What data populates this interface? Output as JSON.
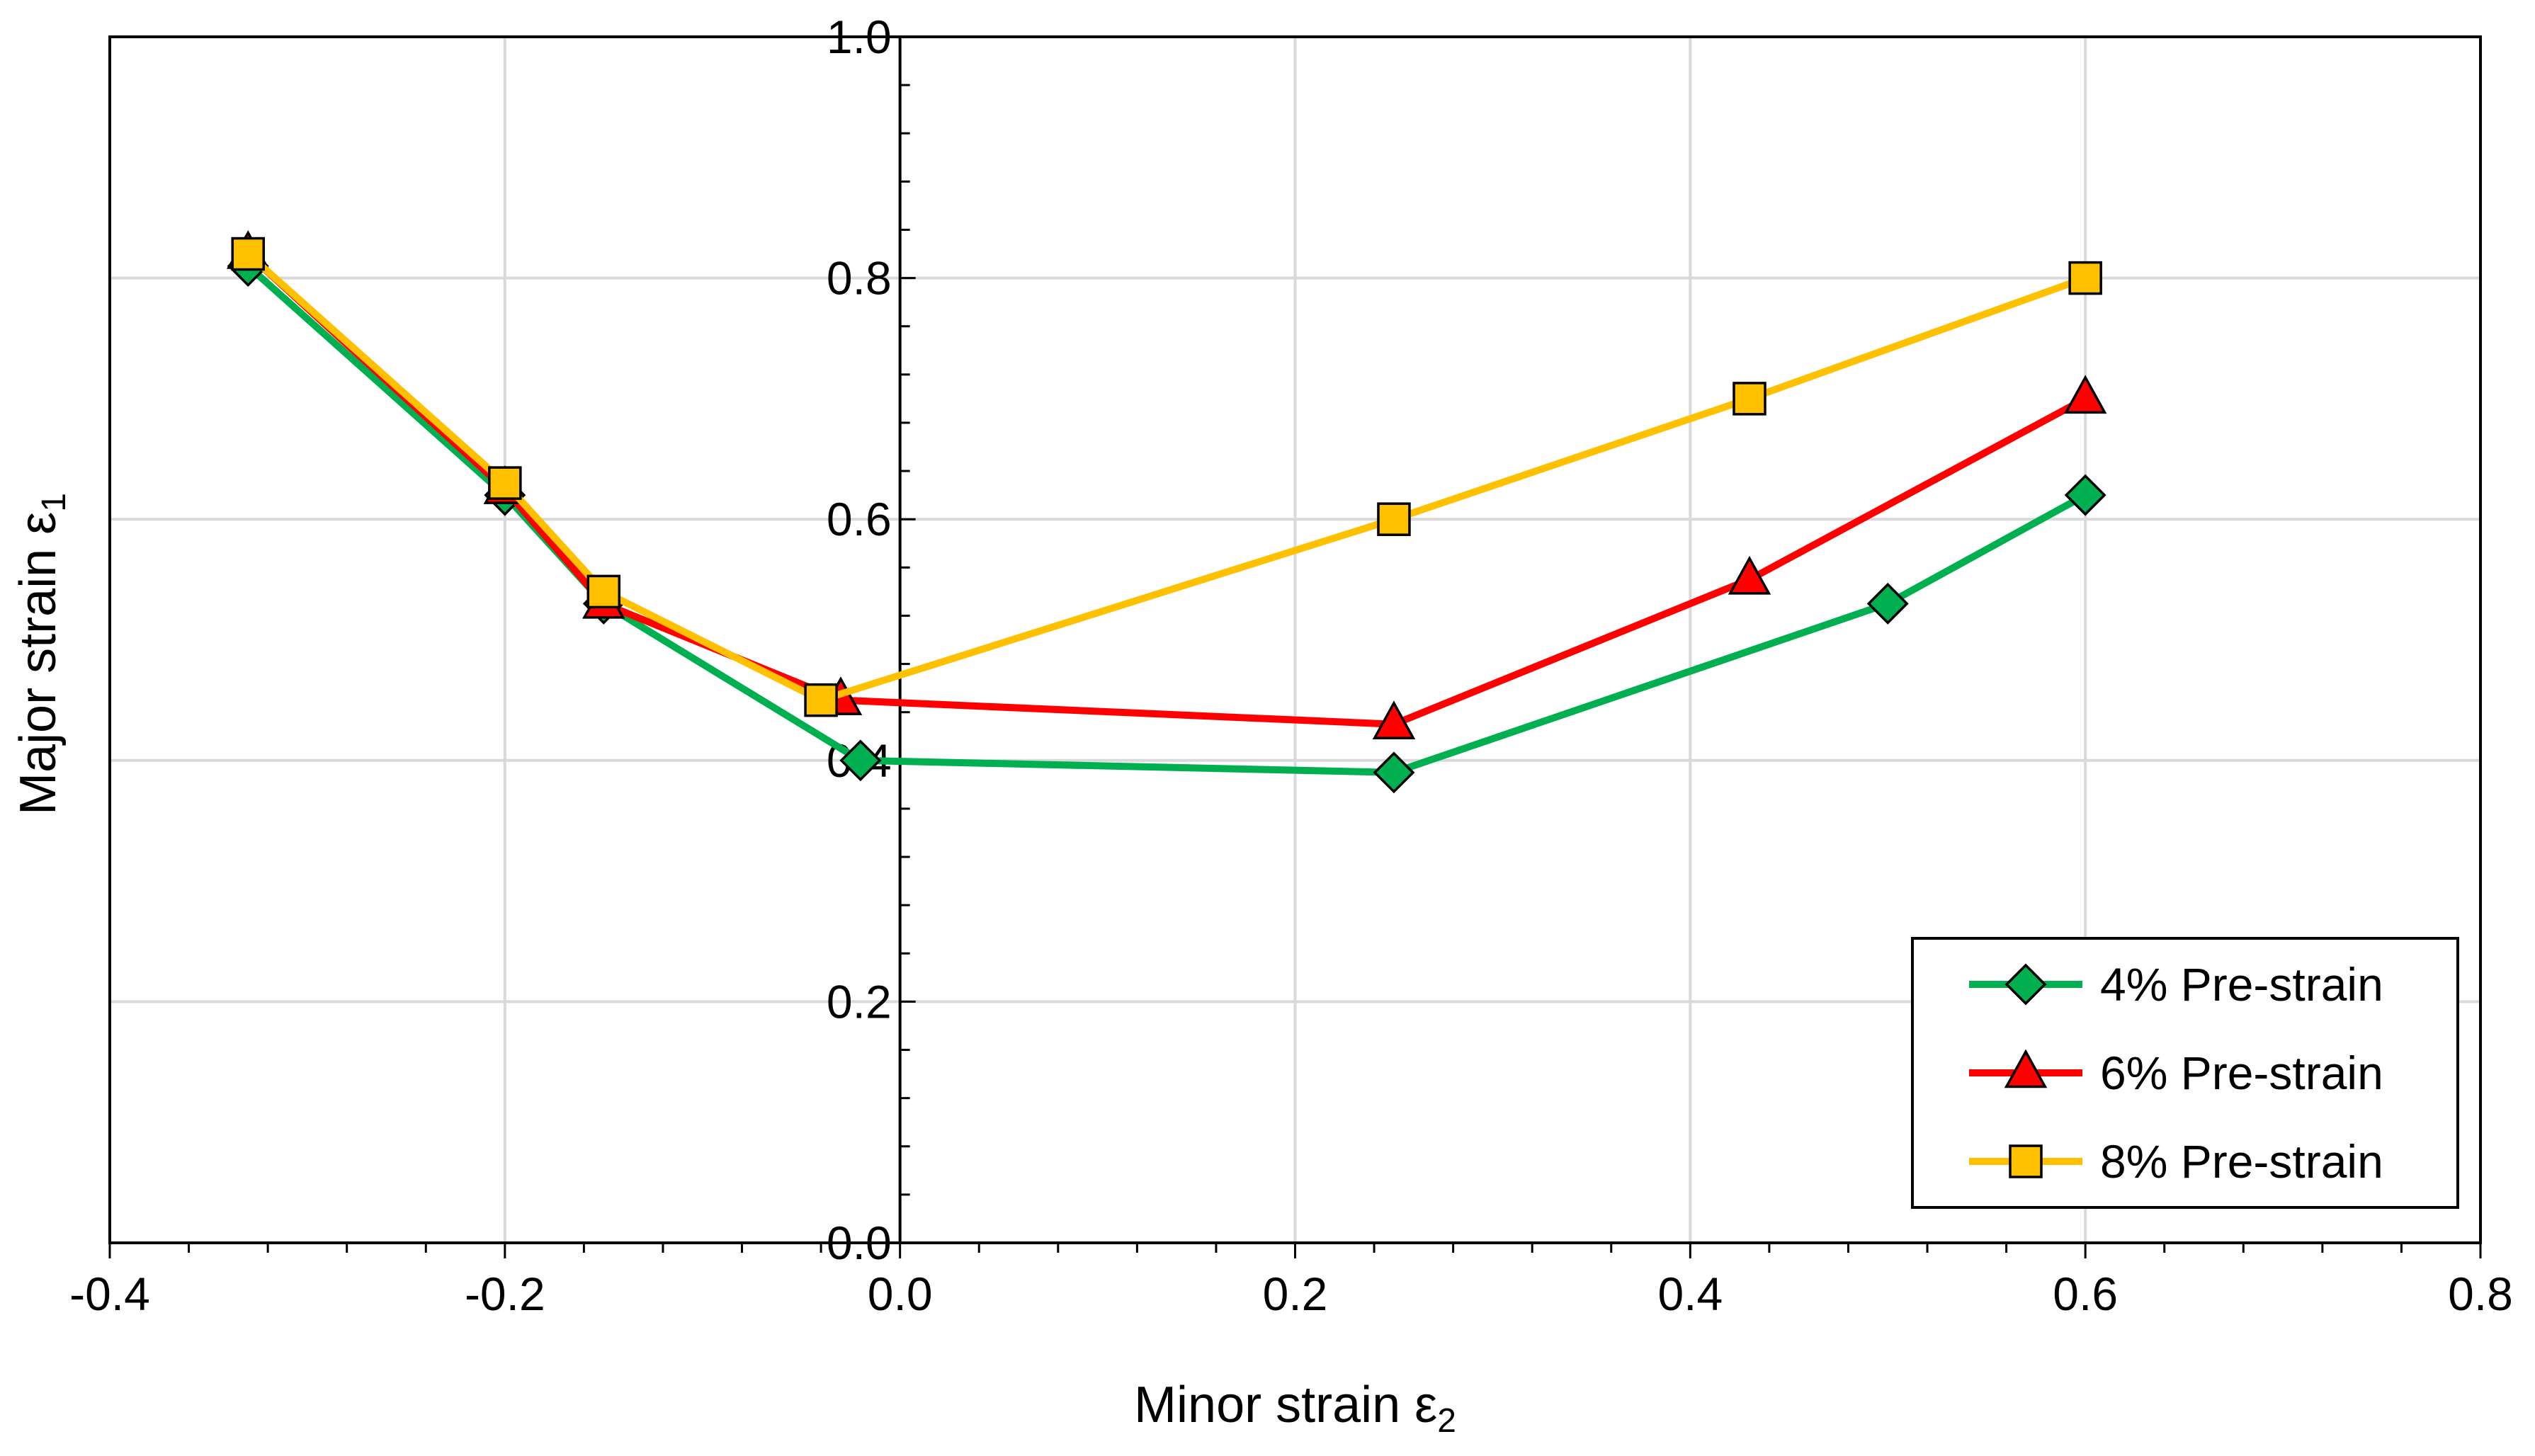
{
  "chart_data": {
    "type": "line",
    "title": "",
    "xlabel": "Minor strain ε",
    "xlabel_sub": "2",
    "ylabel": "Major strain ε",
    "ylabel_sub": "1",
    "xlim": [
      -0.4,
      0.8
    ],
    "ylim": [
      0.0,
      1.0
    ],
    "x_ticks": [
      -0.4,
      -0.2,
      0.0,
      0.2,
      0.4,
      0.6,
      0.8
    ],
    "x_tick_labels": [
      "-0.4",
      "-0.2",
      "0.0",
      "0.2",
      "0.4",
      "0.6",
      "0.8"
    ],
    "y_ticks": [
      0.0,
      0.2,
      0.4,
      0.6,
      0.8,
      1.0
    ],
    "y_tick_labels": [
      "0.0",
      "0.2",
      "0.4",
      "0.6",
      "0.8",
      "1.0"
    ],
    "grid": true,
    "legend_position": "bottom-right",
    "series": [
      {
        "name": "4% Pre-strain",
        "color": "#00B050",
        "marker": "diamond",
        "marker_color": "#00B050",
        "x": [
          -0.33,
          -0.2,
          -0.15,
          -0.02,
          0.25,
          0.5,
          0.6
        ],
        "y": [
          0.81,
          0.62,
          0.53,
          0.4,
          0.39,
          0.53,
          0.62
        ]
      },
      {
        "name": "6% Pre-strain",
        "color": "#FF0000",
        "marker": "triangle",
        "marker_color": "#FF0000",
        "x": [
          -0.33,
          -0.2,
          -0.15,
          -0.03,
          0.25,
          0.43,
          0.6
        ],
        "y": [
          0.82,
          0.625,
          0.53,
          0.45,
          0.43,
          0.55,
          0.7
        ]
      },
      {
        "name": "8% Pre-strain",
        "color": "#FFC000",
        "marker": "square",
        "marker_color": "#FFC000",
        "x": [
          -0.33,
          -0.2,
          -0.15,
          -0.04,
          0.25,
          0.43,
          0.6
        ],
        "y": [
          0.82,
          0.63,
          0.54,
          0.45,
          0.6,
          0.7,
          0.8
        ]
      }
    ]
  }
}
